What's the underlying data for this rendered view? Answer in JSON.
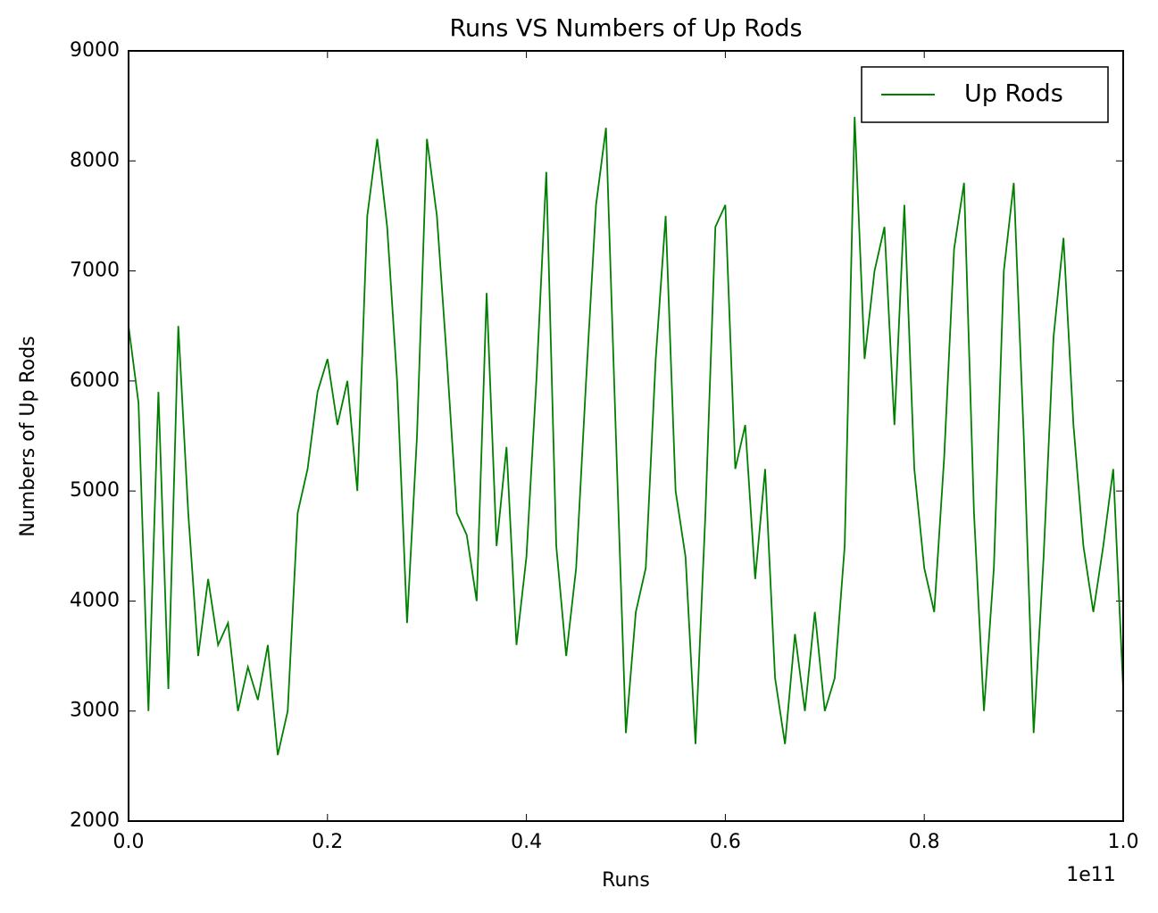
{
  "chart_data": {
    "type": "line",
    "title": "Runs VS Numbers of Up Rods",
    "x_label": "Runs",
    "y_label": "Numbers of Up Rods",
    "x_offset_label": "1e11",
    "x": [
      0,
      0.01,
      0.02,
      0.03,
      0.04,
      0.05,
      0.06,
      0.07,
      0.08,
      0.09,
      0.1,
      0.11,
      0.12,
      0.13,
      0.14,
      0.15,
      0.16,
      0.17,
      0.18,
      0.19,
      0.2,
      0.21,
      0.22,
      0.23,
      0.24,
      0.25,
      0.26,
      0.27,
      0.28,
      0.29,
      0.3,
      0.31,
      0.32,
      0.33,
      0.34,
      0.35,
      0.36,
      0.37,
      0.38,
      0.39,
      0.4,
      0.41,
      0.42,
      0.43,
      0.44,
      0.45,
      0.46,
      0.47,
      0.48,
      0.49,
      0.5,
      0.51,
      0.52,
      0.53,
      0.54,
      0.55,
      0.56,
      0.57,
      0.58,
      0.59,
      0.6,
      0.61,
      0.62,
      0.63,
      0.64,
      0.65,
      0.66,
      0.67,
      0.68,
      0.69,
      0.7,
      0.71,
      0.72,
      0.73,
      0.74,
      0.75,
      0.76,
      0.77,
      0.78,
      0.79,
      0.8,
      0.81,
      0.82,
      0.83,
      0.84,
      0.85,
      0.86,
      0.87,
      0.88,
      0.89,
      0.9,
      0.91,
      0.92,
      0.93,
      0.94,
      0.95,
      0.96,
      0.97,
      0.98,
      0.99,
      1.0
    ],
    "series": [
      {
        "name": "Up Rods",
        "color": "#008000",
        "values": [
          6500,
          5800,
          3000,
          5900,
          3200,
          6500,
          4800,
          3500,
          4200,
          3600,
          3800,
          3000,
          3400,
          3100,
          3600,
          2600,
          3000,
          4800,
          5200,
          5900,
          6200,
          5600,
          6000,
          5000,
          7500,
          8200,
          7400,
          6000,
          3800,
          5500,
          8200,
          7500,
          6200,
          4800,
          4600,
          4000,
          6800,
          4500,
          5400,
          3600,
          4400,
          6000,
          7900,
          4500,
          3500,
          4300,
          6000,
          7600,
          8300,
          5500,
          2800,
          3900,
          4300,
          6200,
          7500,
          5000,
          4400,
          2700,
          4800,
          7400,
          7600,
          5200,
          5600,
          4200,
          5200,
          3300,
          2700,
          3700,
          3000,
          3900,
          3000,
          3300,
          4500,
          8400,
          6200,
          7000,
          7400,
          5600,
          7600,
          5200,
          4300,
          3900,
          5300,
          7200,
          7800,
          4800,
          3000,
          4300,
          7000,
          7800,
          5500,
          2800,
          4400,
          6400,
          7300,
          5600,
          4500,
          3900,
          4500,
          5200,
          3200
        ]
      }
    ],
    "xlim": [
      0,
      1.0
    ],
    "xticks": [
      {
        "value": 0,
        "label": "0.0"
      },
      {
        "value": 0.2,
        "label": "0.2"
      },
      {
        "value": 0.4,
        "label": "0.4"
      },
      {
        "value": 0.6,
        "label": "0.6"
      },
      {
        "value": 0.8,
        "label": "0.8"
      },
      {
        "value": 1.0,
        "label": "1.0"
      }
    ],
    "ylim": [
      2000,
      9000
    ],
    "yticks": [
      2000,
      3000,
      4000,
      5000,
      6000,
      7000,
      8000,
      9000
    ],
    "grid": false,
    "legend": "upper right"
  }
}
